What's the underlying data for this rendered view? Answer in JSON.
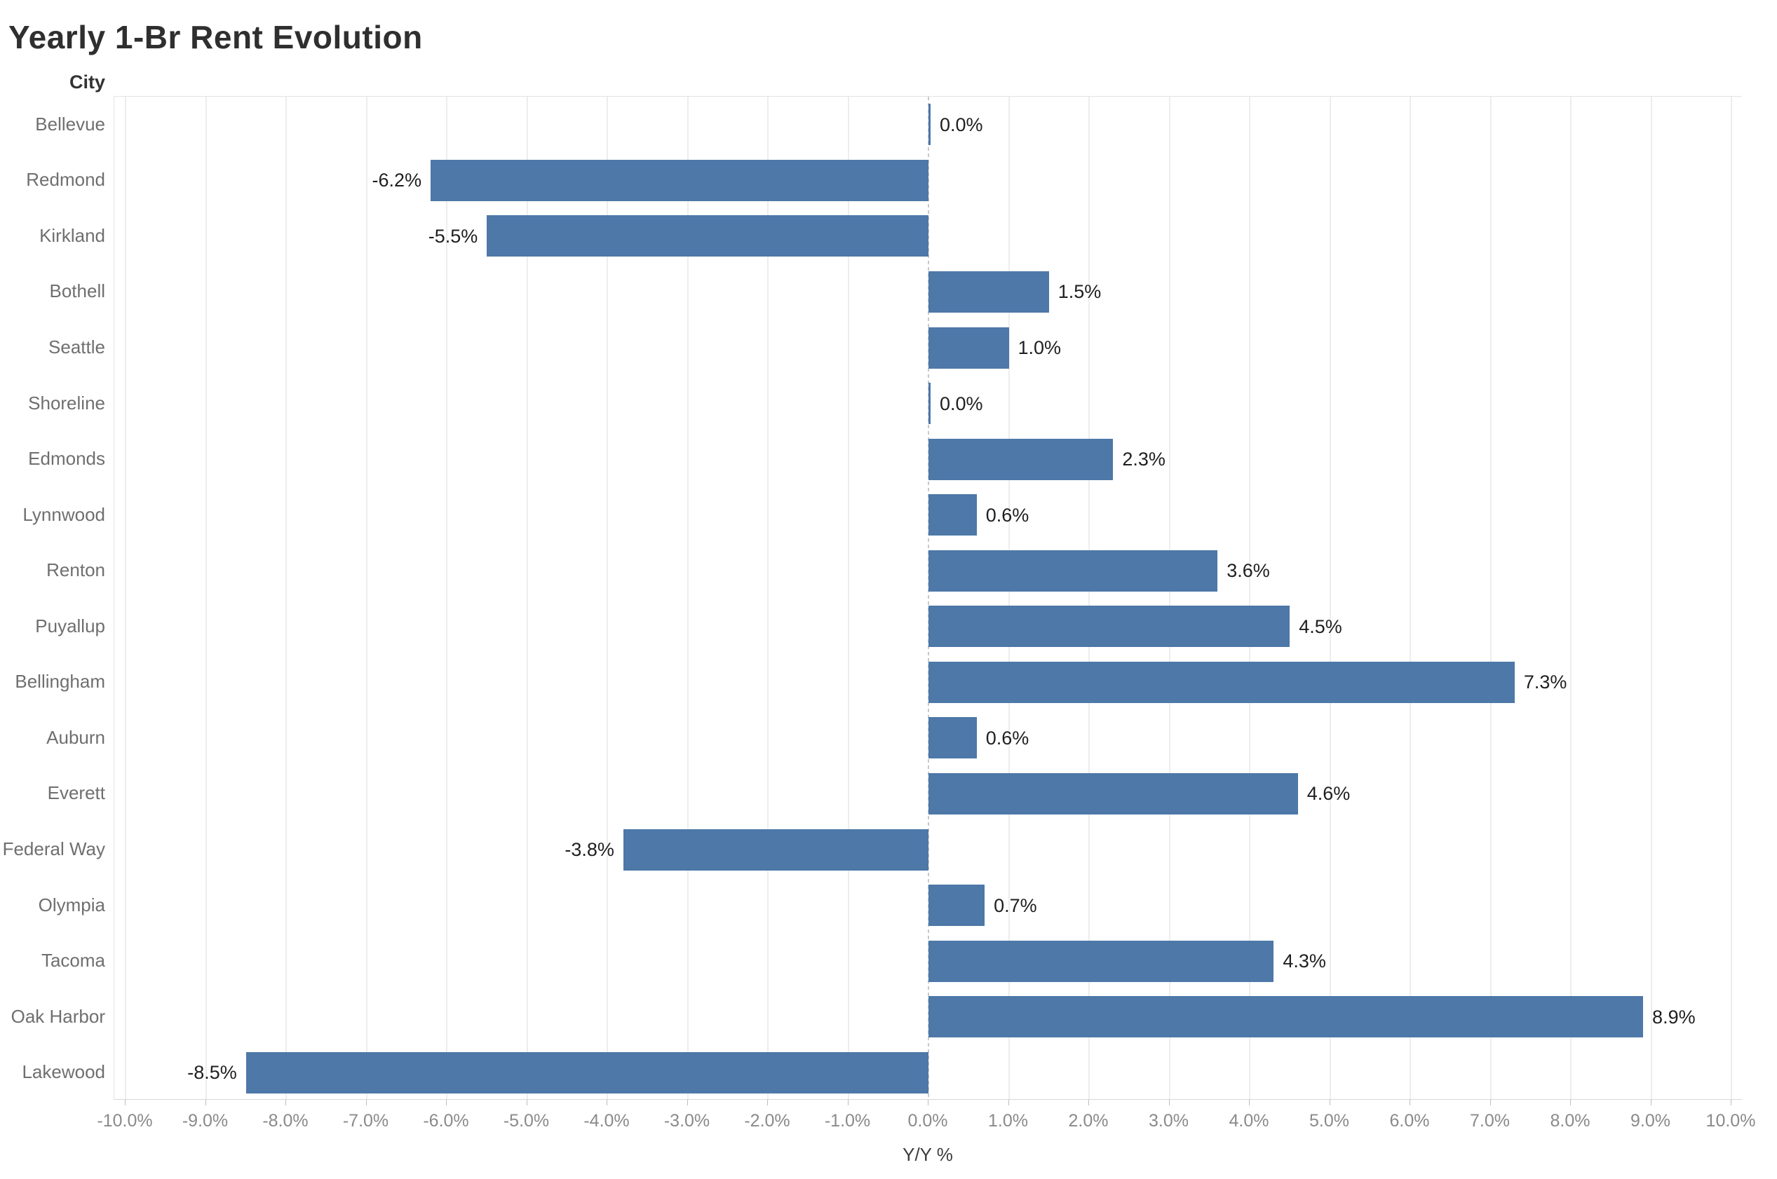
{
  "title": "Yearly 1-Br Rent Evolution",
  "chart_data": {
    "type": "bar",
    "orientation": "horizontal",
    "title": "Yearly 1-Br Rent Evolution",
    "ylabel": "City",
    "xlabel": "Y/Y %",
    "categories": [
      "Bellevue",
      "Redmond",
      "Kirkland",
      "Bothell",
      "Seattle",
      "Shoreline",
      "Edmonds",
      "Lynnwood",
      "Renton",
      "Puyallup",
      "Bellingham",
      "Auburn",
      "Everett",
      "Federal Way",
      "Olympia",
      "Tacoma",
      "Oak Harbor",
      "Lakewood"
    ],
    "values": [
      0.0,
      -6.2,
      -5.5,
      1.5,
      1.0,
      0.0,
      2.3,
      0.6,
      3.6,
      4.5,
      7.3,
      0.6,
      4.6,
      -3.8,
      0.7,
      4.3,
      8.9,
      -8.5
    ],
    "value_labels": [
      "0.0%",
      "-6.2%",
      "-5.5%",
      "1.5%",
      "1.0%",
      "0.0%",
      "2.3%",
      "0.6%",
      "3.6%",
      "4.5%",
      "7.3%",
      "0.6%",
      "4.6%",
      "-3.8%",
      "0.7%",
      "4.3%",
      "8.9%",
      "-8.5%"
    ],
    "xlim": [
      -10,
      10
    ],
    "x_tick_step": 1,
    "x_tick_labels": [
      "-10.0%",
      "-9.0%",
      "-8.0%",
      "-7.0%",
      "-6.0%",
      "-5.0%",
      "-4.0%",
      "-3.0%",
      "-2.0%",
      "-1.0%",
      "0.0%",
      "1.0%",
      "2.0%",
      "3.0%",
      "4.0%",
      "5.0%",
      "6.0%",
      "7.0%",
      "8.0%",
      "9.0%",
      "10.0%"
    ],
    "grid": "vertical",
    "legend": "none",
    "zero_line": "dashed"
  },
  "colors": {
    "bar": "#4d78a8",
    "title_text": "#2f2f2f",
    "header_text": "#333333",
    "city_text": "#6f6f6f",
    "tick_text": "#8a8a8a",
    "value_text": "#1f1f1f",
    "axis_label_text": "#3c3c3c",
    "gridline": "#ededed",
    "pane_border": "#e3e3e3",
    "axis_line": "#d6d6d6",
    "tick_mark": "#bdbdbd",
    "zero_line": "#c9c9c9",
    "background": "#ffffff"
  }
}
